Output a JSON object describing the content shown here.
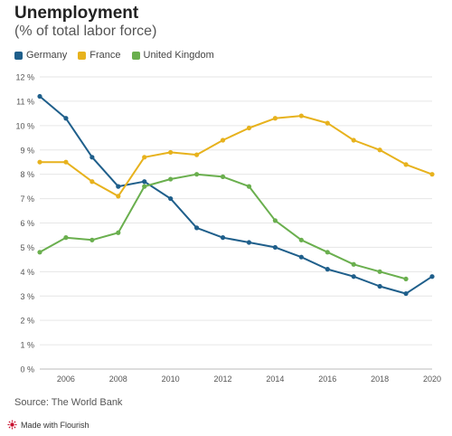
{
  "chart_data": {
    "type": "line",
    "title": "Unemployment",
    "subtitle": "(% of total labor force)",
    "x": [
      2005,
      2006,
      2007,
      2008,
      2009,
      2010,
      2011,
      2012,
      2013,
      2014,
      2015,
      2016,
      2017,
      2018,
      2019,
      2020
    ],
    "xticks": [
      "2006",
      "2008",
      "2010",
      "2012",
      "2014",
      "2016",
      "2018",
      "2020"
    ],
    "yticks": [
      "0 %",
      "1 %",
      "2 %",
      "3 %",
      "4 %",
      "5 %",
      "6 %",
      "7 %",
      "8 %",
      "9 %",
      "10 %",
      "11 %",
      "12 %"
    ],
    "ylim": [
      0,
      12
    ],
    "grid": true,
    "legend_placement": "top-left",
    "series": [
      {
        "name": "Germany",
        "color": "#1f5f8b",
        "values": [
          11.2,
          10.3,
          8.7,
          7.5,
          7.7,
          7.0,
          5.8,
          5.4,
          5.2,
          5.0,
          4.6,
          4.1,
          3.8,
          3.4,
          3.1,
          3.8
        ]
      },
      {
        "name": "France",
        "color": "#e7b21d",
        "values": [
          8.5,
          8.5,
          7.7,
          7.1,
          8.7,
          8.9,
          8.8,
          9.4,
          9.9,
          10.3,
          10.4,
          10.1,
          9.4,
          9.0,
          8.4,
          8.0
        ]
      },
      {
        "name": "United Kingdom",
        "color": "#6aaf4e",
        "values": [
          4.8,
          5.4,
          5.3,
          5.6,
          7.5,
          7.8,
          8.0,
          7.9,
          7.5,
          6.1,
          5.3,
          4.8,
          4.3,
          4.0,
          3.7,
          null
        ]
      }
    ]
  },
  "footer": {
    "source": "Source: The World Bank",
    "made_with": "Made with Flourish"
  }
}
